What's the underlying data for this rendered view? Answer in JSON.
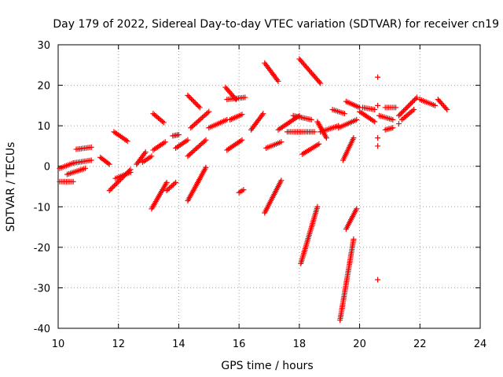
{
  "chart_data": {
    "type": "scatter",
    "title": "Day 179 of 2022, Sidereal Day-to-day VTEC variation (SDTVAR) for receiver cn19",
    "xlabel": "GPS time / hours",
    "ylabel": "SDTVAR / TECUs",
    "xlim": [
      10,
      24
    ],
    "ylim": [
      -40,
      30
    ],
    "x_ticks": [
      10,
      12,
      14,
      16,
      18,
      20,
      22,
      24
    ],
    "y_ticks": [
      -40,
      -30,
      -20,
      -10,
      0,
      10,
      20,
      30
    ],
    "x_tick_labels": [
      "10",
      "12",
      "14",
      "16",
      "18",
      "20",
      "22",
      "24"
    ],
    "y_tick_labels": [
      "-40",
      "-30",
      "-20",
      "-10",
      "0",
      "10",
      "20",
      "30"
    ],
    "grid": true,
    "marker": "+",
    "marker_color": "#ff0000",
    "segments": [
      {
        "x": [
          10.05,
          10.5
        ],
        "y": [
          -3.8,
          -3.8
        ]
      },
      {
        "x": [
          10.05,
          10.5
        ],
        "y": [
          -0.5,
          0.8
        ]
      },
      {
        "x": [
          10.3,
          10.9
        ],
        "y": [
          -2,
          -0.5
        ]
      },
      {
        "x": [
          10.5,
          11.1
        ],
        "y": [
          0.8,
          1.5
        ]
      },
      {
        "x": [
          10.6,
          11.1
        ],
        "y": [
          4.2,
          4.7
        ]
      },
      {
        "x": [
          11.4,
          11.7
        ],
        "y": [
          2.2,
          0.5
        ]
      },
      {
        "x": [
          11.7,
          12.4
        ],
        "y": [
          -6,
          -0.8
        ]
      },
      {
        "x": [
          11.9,
          12.4
        ],
        "y": [
          -3,
          -1.5
        ]
      },
      {
        "x": [
          11.85,
          12.3
        ],
        "y": [
          8.5,
          6.2
        ]
      },
      {
        "x": [
          12.6,
          12.9
        ],
        "y": [
          0.5,
          3.5
        ]
      },
      {
        "x": [
          12.8,
          13.1
        ],
        "y": [
          1,
          2.5
        ]
      },
      {
        "x": [
          13.15,
          13.5
        ],
        "y": [
          13,
          10.8
        ]
      },
      {
        "x": [
          13.1,
          13.6
        ],
        "y": [
          -10.5,
          -4
        ]
      },
      {
        "x": [
          13.15,
          13.55
        ],
        "y": [
          4,
          6
        ]
      },
      {
        "x": [
          13.6,
          13.9
        ],
        "y": [
          -6,
          -4
        ]
      },
      {
        "x": [
          13.8,
          14.0
        ],
        "y": [
          7.5,
          7.8
        ]
      },
      {
        "x": [
          13.9,
          14.3
        ],
        "y": [
          4.5,
          6.5
        ]
      },
      {
        "x": [
          14.3,
          14.7
        ],
        "y": [
          17.5,
          14.5
        ]
      },
      {
        "x": [
          14.3,
          14.9
        ],
        "y": [
          -8.5,
          -0.3
        ]
      },
      {
        "x": [
          14.3,
          14.9
        ],
        "y": [
          2.5,
          6.5
        ]
      },
      {
        "x": [
          14.4,
          15.0
        ],
        "y": [
          9.5,
          13.5
        ]
      },
      {
        "x": [
          15.0,
          15.6
        ],
        "y": [
          9.5,
          11.5
        ]
      },
      {
        "x": [
          15.55,
          15.9
        ],
        "y": [
          19.5,
          16.5
        ]
      },
      {
        "x": [
          15.6,
          16.2
        ],
        "y": [
          16.5,
          17
        ]
      },
      {
        "x": [
          15.7,
          16.1
        ],
        "y": [
          11.5,
          12.8
        ]
      },
      {
        "x": [
          15.6,
          16.1
        ],
        "y": [
          4,
          6.5
        ]
      },
      {
        "x": [
          16.0,
          16.15
        ],
        "y": [
          -6.5,
          -5.8
        ]
      },
      {
        "x": [
          16.4,
          16.8
        ],
        "y": [
          9,
          13
        ]
      },
      {
        "x": [
          16.85,
          17.3
        ],
        "y": [
          25.5,
          21
        ]
      },
      {
        "x": [
          16.85,
          17.4
        ],
        "y": [
          -11.5,
          -3.5
        ]
      },
      {
        "x": [
          16.9,
          17.4
        ],
        "y": [
          4.5,
          6
        ]
      },
      {
        "x": [
          17.3,
          18.0
        ],
        "y": [
          9,
          12.5
        ]
      },
      {
        "x": [
          17.8,
          18.4
        ],
        "y": [
          12.5,
          11.5
        ]
      },
      {
        "x": [
          18.0,
          18.7
        ],
        "y": [
          26.5,
          20.5
        ]
      },
      {
        "x": [
          18.05,
          18.6
        ],
        "y": [
          -24,
          -10
        ]
      },
      {
        "x": [
          18.1,
          18.65
        ],
        "y": [
          3,
          5.5
        ]
      },
      {
        "x": [
          17.6,
          18.5
        ],
        "y": [
          8.5,
          8.5
        ]
      },
      {
        "x": [
          18.6,
          18.9
        ],
        "y": [
          11,
          7
        ]
      },
      {
        "x": [
          18.7,
          19.3
        ],
        "y": [
          8.5,
          10
        ]
      },
      {
        "x": [
          19.1,
          19.5
        ],
        "y": [
          14,
          13
        ]
      },
      {
        "x": [
          19.3,
          19.9
        ],
        "y": [
          9.5,
          11.5
        ]
      },
      {
        "x": [
          19.35,
          19.8
        ],
        "y": [
          -38,
          -18
        ]
      },
      {
        "x": [
          19.45,
          19.8
        ],
        "y": [
          1.5,
          7
        ]
      },
      {
        "x": [
          19.55,
          19.9
        ],
        "y": [
          -15.5,
          -10.5
        ]
      },
      {
        "x": [
          19.55,
          20.0
        ],
        "y": [
          16,
          14.5
        ]
      },
      {
        "x": [
          20.0,
          20.5
        ],
        "y": [
          13.5,
          11
        ]
      },
      {
        "x": [
          20.1,
          20.5
        ],
        "y": [
          14.5,
          14
        ]
      },
      {
        "x": [
          20.65,
          21.1
        ],
        "y": [
          12.5,
          11.5
        ]
      },
      {
        "x": [
          20.85,
          21.2
        ],
        "y": [
          14.5,
          14.5
        ]
      },
      {
        "x": [
          20.85,
          21.1
        ],
        "y": [
          9,
          9.5
        ]
      },
      {
        "x": [
          21.3,
          21.9
        ],
        "y": [
          12.5,
          17
        ]
      },
      {
        "x": [
          21.4,
          21.8
        ],
        "y": [
          11.5,
          14
        ]
      },
      {
        "x": [
          22.0,
          22.5
        ],
        "y": [
          16.5,
          15
        ]
      },
      {
        "x": [
          22.6,
          22.9
        ],
        "y": [
          16.5,
          14
        ]
      }
    ],
    "points": [
      {
        "x": 20.6,
        "y": 22
      },
      {
        "x": 20.6,
        "y": 7
      },
      {
        "x": 20.6,
        "y": 5
      },
      {
        "x": 20.6,
        "y": -28
      },
      {
        "x": 21.3,
        "y": 10.5
      },
      {
        "x": 20.6,
        "y": 15
      }
    ]
  }
}
